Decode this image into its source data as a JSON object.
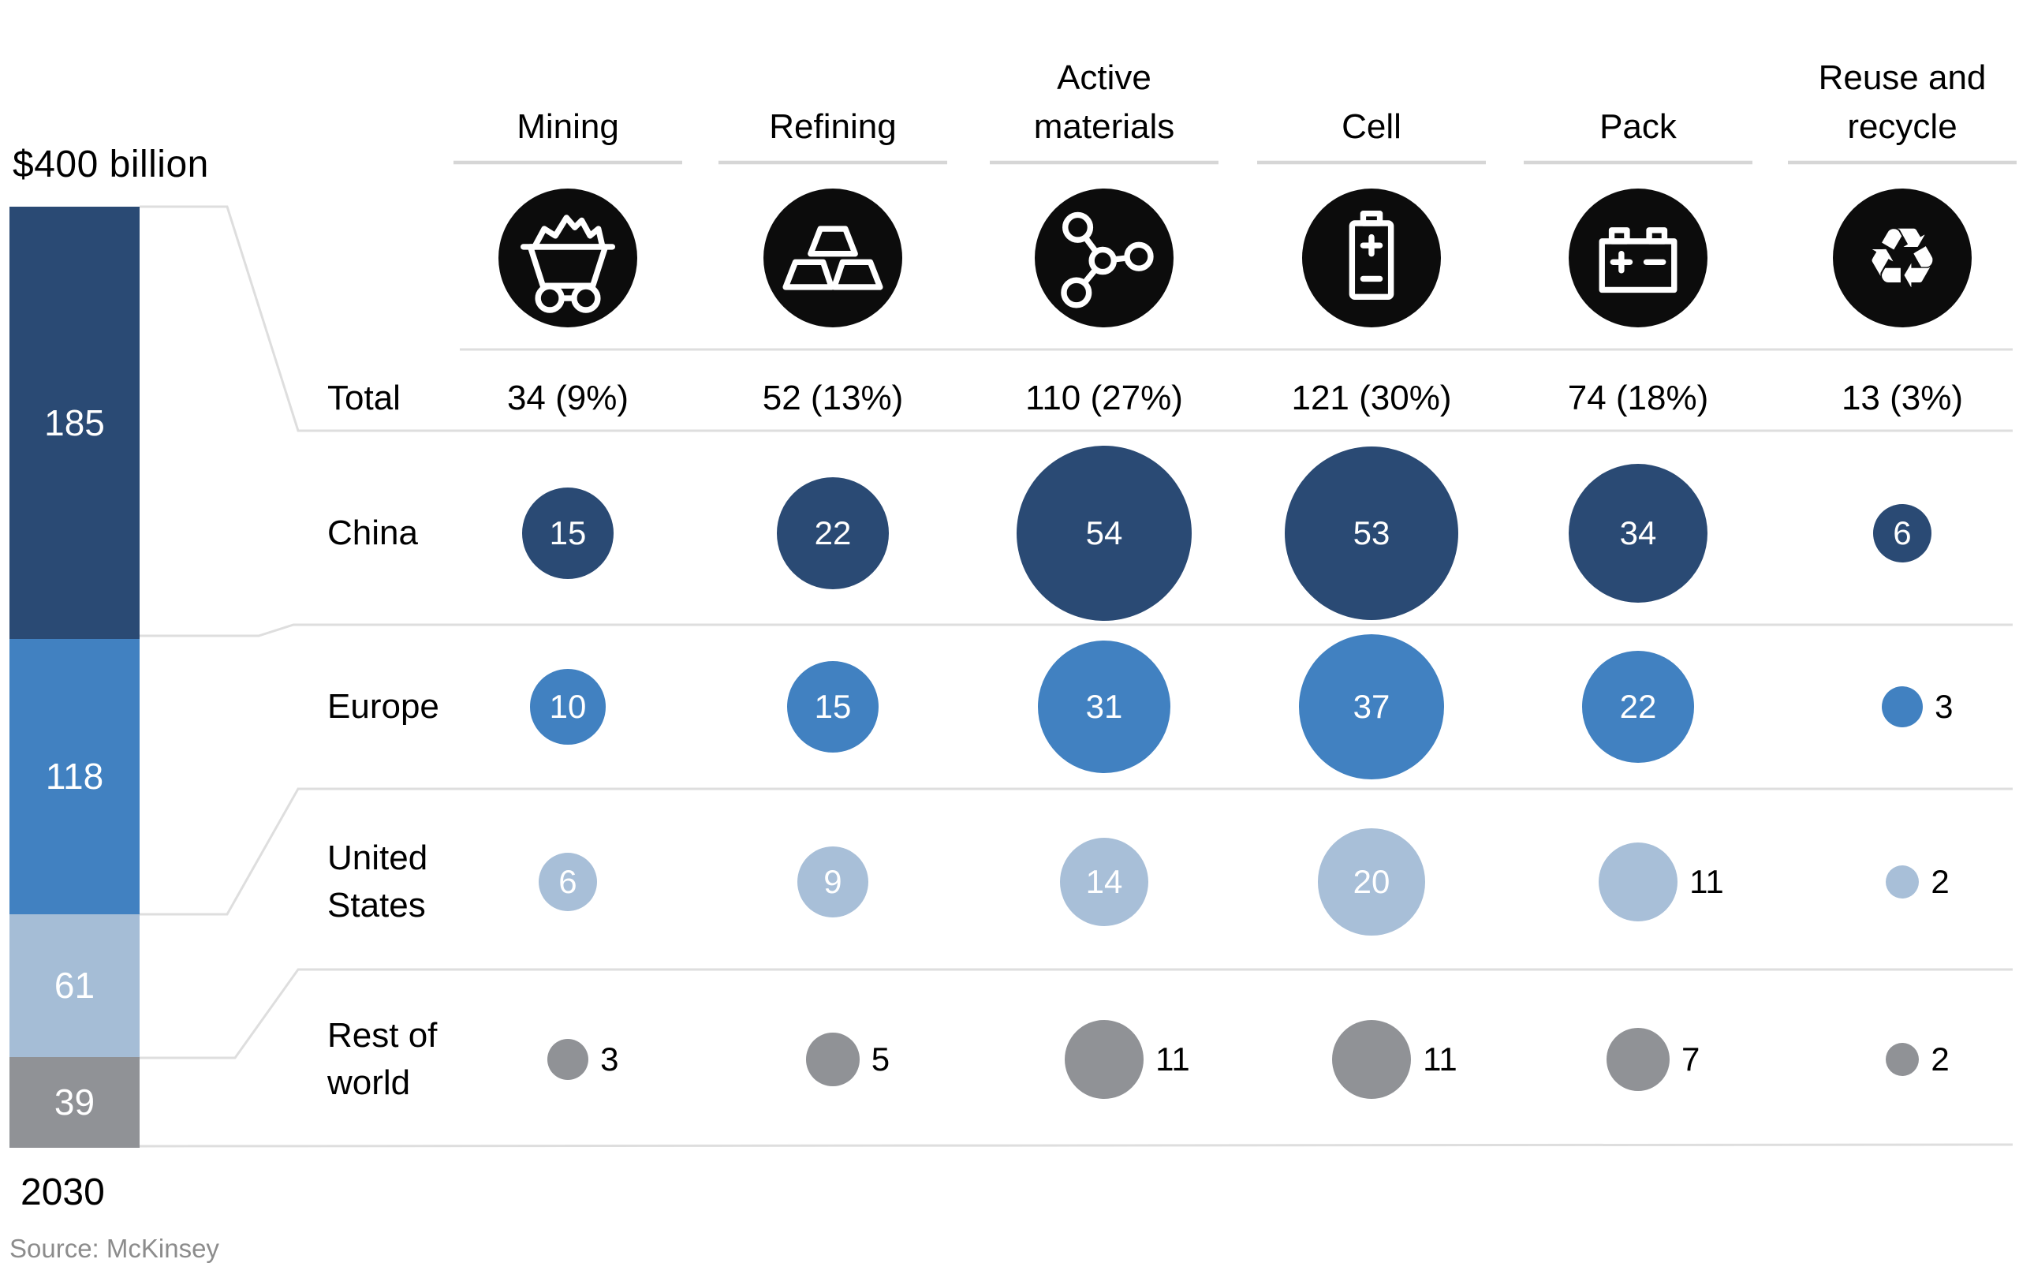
{
  "chart_data": {
    "type": "bubble-matrix",
    "title": "$400 billion",
    "year": "2030",
    "source": "Source: McKinsey",
    "total_row_label": "Total",
    "unit": "USD billions",
    "colors": {
      "china_dark_blue": "#2a4a74",
      "europe_blue": "#4181c1",
      "us_light_blue": "#a8bfd8",
      "rest_of_world_gray": "#909296",
      "icon_circle_black": "#0c0c0c",
      "rule_gray": "#dedede"
    },
    "bar_segments": [
      {
        "value": 185,
        "label": "185",
        "color": "#2a4a74"
      },
      {
        "value": 118,
        "label": "118",
        "color": "#4181c1"
      },
      {
        "value": 61,
        "label": "61",
        "color": "#a5bdd6"
      },
      {
        "value": 39,
        "label": "39",
        "color": "#909296"
      }
    ],
    "columns": [
      {
        "label": "Mining",
        "label_lines": [
          "Mining"
        ],
        "icon": "mine-cart-icon",
        "total": "34 (9%)"
      },
      {
        "label": "Refining",
        "label_lines": [
          "Refining"
        ],
        "icon": "gold-ingots-icon",
        "total": "52 (13%)"
      },
      {
        "label": "Active materials",
        "label_lines": [
          "Active",
          "materials"
        ],
        "icon": "molecule-icon",
        "total": "110 (27%)"
      },
      {
        "label": "Cell",
        "label_lines": [
          "Cell"
        ],
        "icon": "battery-cell-icon",
        "total": "121 (30%)"
      },
      {
        "label": "Pack",
        "label_lines": [
          "Pack"
        ],
        "icon": "battery-pack-icon",
        "total": "74 (18%)"
      },
      {
        "label": "Reuse and recycle",
        "label_lines": [
          "Reuse and",
          "recycle"
        ],
        "icon": "recycle-icon",
        "total": "13 (3%)"
      }
    ],
    "rows": [
      {
        "label": "China",
        "label_lines": [
          "China"
        ],
        "color": "#2a4a74",
        "values": [
          15,
          22,
          54,
          53,
          34,
          6
        ],
        "value_inside": [
          true,
          true,
          true,
          true,
          true,
          true
        ]
      },
      {
        "label": "Europe",
        "label_lines": [
          "Europe"
        ],
        "color": "#4181c1",
        "values": [
          10,
          15,
          31,
          37,
          22,
          3
        ],
        "value_inside": [
          true,
          true,
          true,
          true,
          true,
          false
        ]
      },
      {
        "label": "United States",
        "label_lines": [
          "United",
          "States"
        ],
        "color": "#a8bfd8",
        "values": [
          6,
          9,
          14,
          20,
          11,
          2
        ],
        "value_inside": [
          true,
          true,
          true,
          true,
          false,
          false
        ]
      },
      {
        "label": "Rest of world",
        "label_lines": [
          "Rest of",
          "world"
        ],
        "color": "#909296",
        "values": [
          3,
          5,
          11,
          11,
          7,
          2
        ],
        "value_inside": [
          false,
          false,
          false,
          false,
          false,
          false
        ]
      }
    ]
  }
}
